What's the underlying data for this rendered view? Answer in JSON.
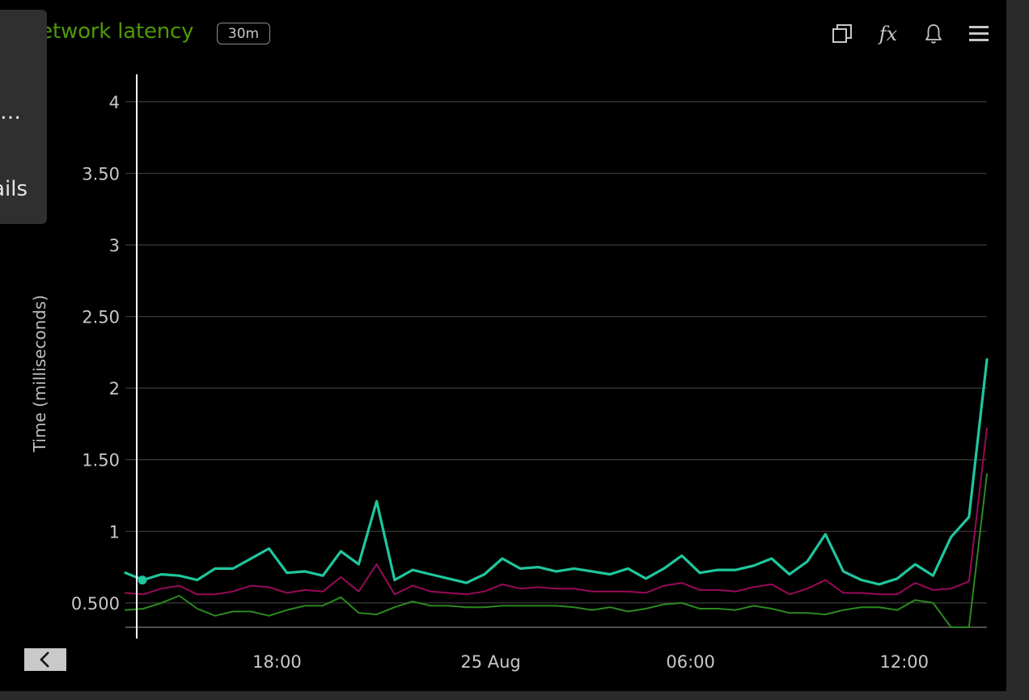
{
  "panel": {
    "title": "Network latency",
    "interval_badge": "30m",
    "icons": [
      "copy-icon",
      "fx-icon",
      "bell-icon",
      "menu-icon"
    ],
    "fx_label": "fx",
    "colors": {
      "title": "#4e9a06",
      "background": "#000000"
    }
  },
  "side_popup": {
    "line1": "y…",
    "line2": "ails"
  },
  "nav": {
    "back_icon": "chevron-left-icon"
  },
  "chart_data": {
    "type": "line",
    "title": "Network latency",
    "xlabel": "",
    "ylabel": "Time (milliseconds)",
    "ylim": [
      0.33,
      4.05
    ],
    "y_ticks": [
      {
        "value": 0.5,
        "label": "0.500"
      },
      {
        "value": 1,
        "label": "1"
      },
      {
        "value": 1.5,
        "label": "1.50"
      },
      {
        "value": 2,
        "label": "2"
      },
      {
        "value": 2.5,
        "label": "2.50"
      },
      {
        "value": 3,
        "label": "3"
      },
      {
        "value": 3.5,
        "label": "3.50"
      },
      {
        "value": 4,
        "label": "4"
      }
    ],
    "x_ticks": [
      {
        "index": 8.8,
        "label": "18:00"
      },
      {
        "index": 21.2,
        "label": "25 Aug"
      },
      {
        "index": 32.8,
        "label": "06:00"
      },
      {
        "index": 45.2,
        "label": "12:00"
      }
    ],
    "x_count": 51,
    "grid": true,
    "legend": "none",
    "cursor_index": 0.7,
    "series": [
      {
        "color": "#1fc79e",
        "width": 3.2,
        "values": [
          0.71,
          0.66,
          0.7,
          0.69,
          0.66,
          0.74,
          0.74,
          0.81,
          0.88,
          0.71,
          0.72,
          0.69,
          0.86,
          0.77,
          1.21,
          0.66,
          0.73,
          0.7,
          0.67,
          0.64,
          0.7,
          0.81,
          0.74,
          0.75,
          0.72,
          0.74,
          0.72,
          0.7,
          0.74,
          0.67,
          0.74,
          0.83,
          0.71,
          0.73,
          0.73,
          0.76,
          0.81,
          0.7,
          0.79,
          0.98,
          0.72,
          0.66,
          0.63,
          0.67,
          0.77,
          0.69,
          0.96,
          1.1,
          2.2
        ]
      },
      {
        "color": "#990a58",
        "width": 2,
        "values": [
          0.57,
          0.56,
          0.6,
          0.62,
          0.56,
          0.56,
          0.58,
          0.62,
          0.61,
          0.57,
          0.59,
          0.58,
          0.68,
          0.58,
          0.77,
          0.56,
          0.62,
          0.58,
          0.57,
          0.56,
          0.58,
          0.63,
          0.6,
          0.61,
          0.6,
          0.6,
          0.58,
          0.58,
          0.58,
          0.57,
          0.62,
          0.64,
          0.59,
          0.59,
          0.58,
          0.61,
          0.63,
          0.56,
          0.6,
          0.66,
          0.57,
          0.57,
          0.56,
          0.56,
          0.64,
          0.59,
          0.6,
          0.65,
          1.72
        ]
      },
      {
        "color": "#2b8a1f",
        "width": 2,
        "values": [
          0.45,
          0.46,
          0.5,
          0.55,
          0.46,
          0.41,
          0.44,
          0.44,
          0.41,
          0.45,
          0.48,
          0.48,
          0.54,
          0.43,
          0.42,
          0.47,
          0.51,
          0.48,
          0.48,
          0.47,
          0.47,
          0.48,
          0.48,
          0.48,
          0.48,
          0.47,
          0.45,
          0.47,
          0.44,
          0.46,
          0.49,
          0.5,
          0.46,
          0.46,
          0.45,
          0.48,
          0.46,
          0.43,
          0.43,
          0.42,
          0.45,
          0.47,
          0.47,
          0.45,
          0.52,
          0.5,
          0.33,
          0.33,
          1.4
        ]
      }
    ]
  }
}
